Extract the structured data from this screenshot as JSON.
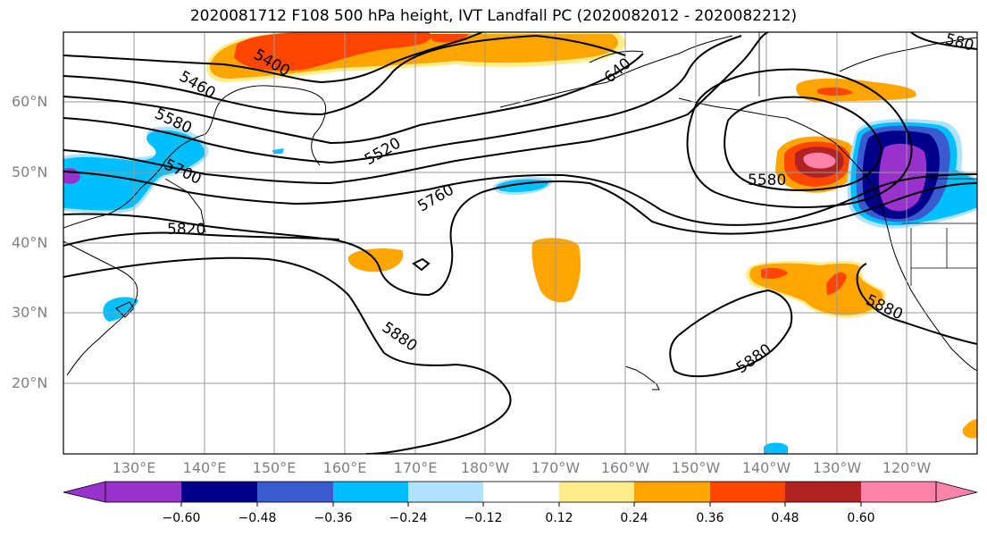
{
  "title": "2020081712 F108 500 hPa height, IVT Landfall PC (2020082012 - 2020082212)",
  "axes": {
    "lat_labels": [
      "60°N",
      "50°N",
      "40°N",
      "30°N",
      "20°N"
    ],
    "lon_labels": [
      "130°E",
      "140°E",
      "150°E",
      "160°E",
      "170°E",
      "180°W",
      "170°W",
      "160°W",
      "150°W",
      "140°W",
      "130°W",
      "120°W"
    ]
  },
  "contour_labels": [
    "5400",
    "5460",
    "5520",
    "5580",
    "5700",
    "5760",
    "5820",
    "5880",
    "5880",
    "5880",
    "5580",
    "640",
    "580"
  ],
  "colorbar": {
    "colors": [
      "#9932CC",
      "#00008B",
      "#3A5BD0",
      "#00BFFF",
      "#B0E2FF",
      "#FFFFFF",
      "#FFEC8B",
      "#FFA500",
      "#FF4500",
      "#B22222",
      "#FF82AB"
    ],
    "tick_labels": [
      "−0.60",
      "−0.48",
      "−0.36",
      "−0.24",
      "−0.12",
      "0.12",
      "0.24",
      "0.36",
      "0.48",
      "0.60"
    ]
  },
  "chart_data": {
    "type": "map",
    "title": "2020081712 F108 500 hPa height, IVT Landfall PC (2020082012 - 2020082212)",
    "contour_field": "500 hPa height",
    "contour_values_labeled": [
      5400,
      5460,
      5520,
      5580,
      5700,
      5760,
      5820,
      5880
    ],
    "shaded_field": "IVT Landfall PC",
    "levels": [
      -0.6,
      -0.48,
      -0.36,
      -0.24,
      -0.12,
      0.12,
      0.24,
      0.36,
      0.48,
      0.6
    ],
    "lat_range": [
      10,
      70
    ],
    "lon_range": [
      "120°E",
      "110°W"
    ],
    "grid": true
  }
}
